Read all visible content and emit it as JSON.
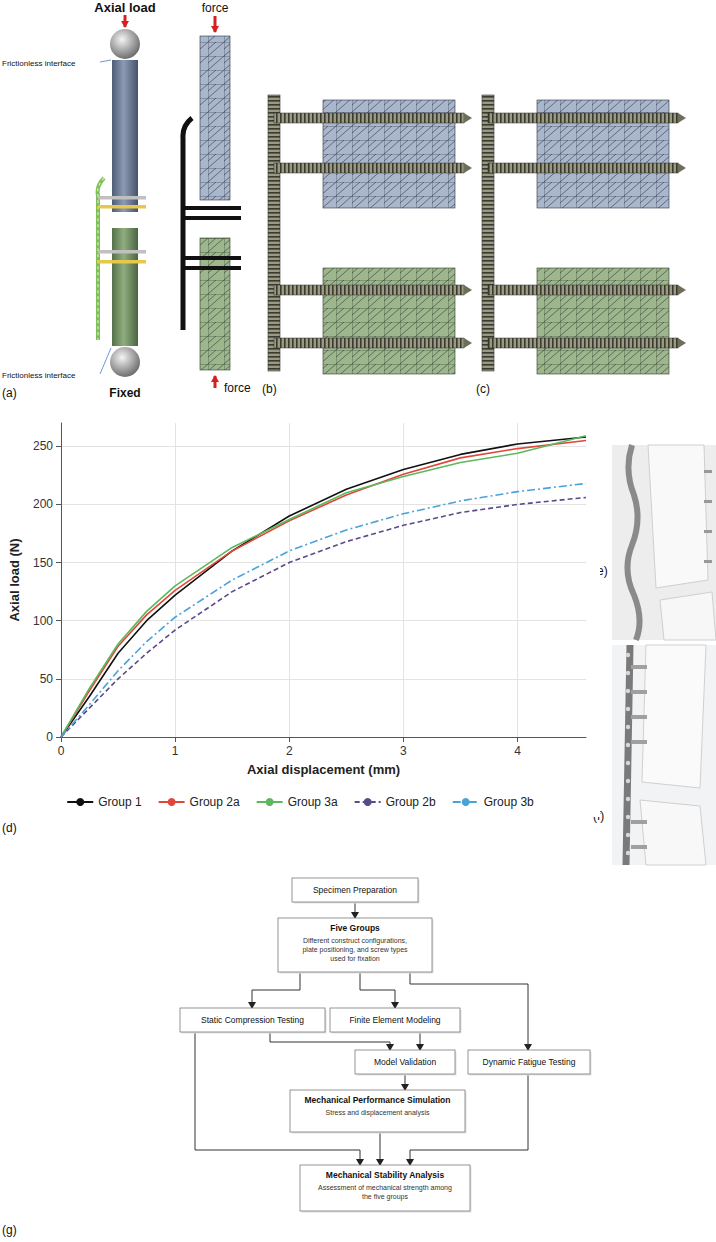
{
  "panels": {
    "a": {
      "label": "(a)",
      "load": "Axial load",
      "interface_top": "Frictionless interface",
      "interface_bottom": "Frictionless interface",
      "fixed": "Fixed",
      "force_top": "force",
      "force_bottom": "force"
    },
    "b": {
      "label": "(b)"
    },
    "c": {
      "label": "(c)"
    },
    "d": {
      "label": "(d)"
    },
    "e": {
      "label": "(e)"
    },
    "f": {
      "label": "(f)"
    },
    "g": {
      "label": "(g)"
    }
  },
  "chart_data": {
    "type": "line",
    "x_label": "Axial displacement (mm)",
    "y_label": "Axial load (N)",
    "x": [
      0,
      0.25,
      0.5,
      0.75,
      1,
      1.5,
      2,
      2.5,
      3,
      3.5,
      4,
      4.6
    ],
    "series": [
      {
        "name": "Group 1",
        "color": "#111111",
        "line_style": "solid",
        "values": [
          0,
          35,
          72,
          100,
          122,
          160,
          190,
          213,
          230,
          243,
          252,
          258
        ]
      },
      {
        "name": "Group 2a",
        "color": "#e0483c",
        "line_style": "solid",
        "values": [
          0,
          40,
          78,
          105,
          126,
          160,
          186,
          208,
          226,
          240,
          248,
          255
        ]
      },
      {
        "name": "Group 3a",
        "color": "#5cb85c",
        "line_style": "solid",
        "values": [
          0,
          42,
          80,
          108,
          130,
          163,
          187,
          210,
          224,
          236,
          244,
          259
        ]
      },
      {
        "name": "Group 2b",
        "color": "#5b4a8a",
        "line_style": "dashed",
        "values": [
          0,
          25,
          50,
          72,
          92,
          125,
          150,
          168,
          182,
          193,
          200,
          206
        ]
      },
      {
        "name": "Group 3b",
        "color": "#4aa3d8",
        "line_style": "dashdot",
        "values": [
          0,
          28,
          57,
          82,
          103,
          135,
          160,
          178,
          192,
          203,
          211,
          218
        ]
      }
    ],
    "xlim": [
      0,
      4.6
    ],
    "xticks": [
      0,
      1,
      2,
      3,
      4
    ],
    "ylim": [
      0,
      270
    ],
    "yticks": [
      0,
      50,
      100,
      150,
      200,
      250
    ],
    "grid": true,
    "legend": "bottom"
  },
  "flowchart": {
    "nodes": [
      {
        "title": "Specimen Preparation"
      },
      {
        "title": "Five Groups",
        "text": "Different construct configurations, plate positioning, and screw types used for fixation"
      },
      {
        "title": "Static Compression Testing"
      },
      {
        "title": "Finite Element Modeling"
      },
      {
        "title": "Model Validation"
      },
      {
        "title": "Dynamic Fatigue Testing"
      },
      {
        "title": "Mechanical Performance Simulation",
        "text": "Stress and displacement analysis"
      },
      {
        "title": "Mechanical Stability Analysis",
        "text": "Assessment of mechanical strength among the five groups"
      }
    ]
  }
}
